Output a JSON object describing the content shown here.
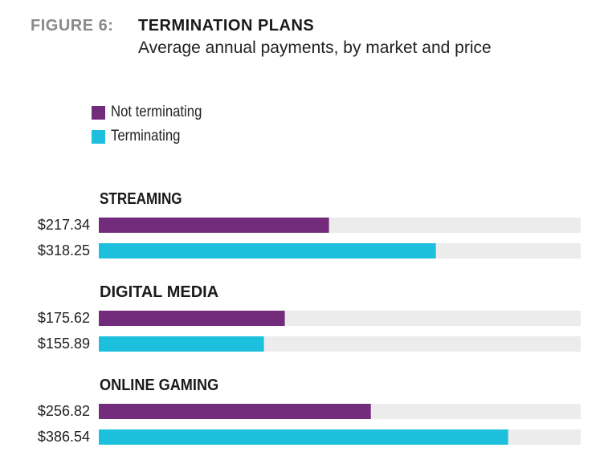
{
  "figure_label": "FIGURE 6:",
  "title": "TERMINATION PLANS",
  "subtitle": "Average annual payments, by market and price",
  "colors": {
    "not_terminating": "#722c7b",
    "terminating": "#1cc0dc",
    "track": "#ececec"
  },
  "chart_data": {
    "type": "bar",
    "orientation": "horizontal",
    "title": "TERMINATION PLANS",
    "subtitle": "Average annual payments, by market and price",
    "legend": [
      "Not terminating",
      "Terminating"
    ],
    "legend_position": "top-left",
    "xlim": [
      0,
      455
    ],
    "grid": false,
    "groups": [
      {
        "name": "STREAMING",
        "values": [
          217.34,
          318.25
        ],
        "labels": [
          "$217.34",
          "$318.25"
        ]
      },
      {
        "name": "DIGITAL MEDIA",
        "values": [
          175.62,
          155.89
        ],
        "labels": [
          "$175.62",
          "$155.89"
        ]
      },
      {
        "name": "ONLINE GAMING",
        "values": [
          256.82,
          386.54
        ],
        "labels": [
          "$256.82",
          "$386.54"
        ]
      }
    ]
  }
}
